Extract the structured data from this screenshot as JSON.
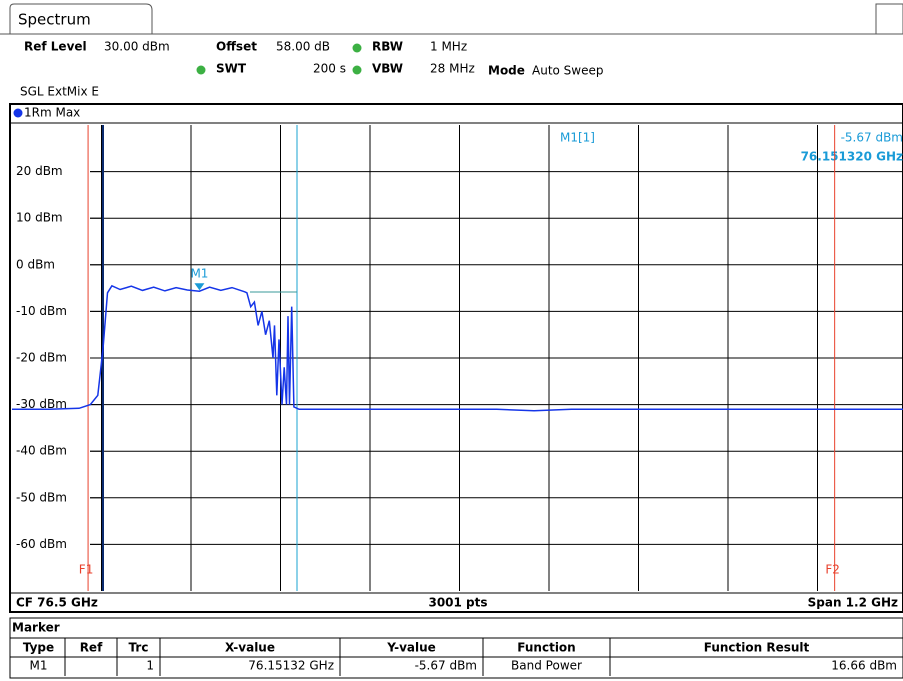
{
  "tab": "Spectrum",
  "header": {
    "ref_level_label": "Ref Level",
    "ref_level": "30.00 dBm",
    "offset_label": "Offset",
    "offset": "58.00 dB",
    "rbw_label": "RBW",
    "rbw": "1 MHz",
    "swt_label": "SWT",
    "swt": "200 s",
    "vbw_label": "VBW",
    "vbw": "28 MHz",
    "mode_label": "Mode",
    "mode": "Auto Sweep",
    "sweep_info": "SGL ExtMix E"
  },
  "trace_label": "1Rm Max",
  "readout": {
    "name": "M1[1]",
    "level": "-5.67 dBm",
    "freq": "76.151320 GHz"
  },
  "chart_data": {
    "type": "line",
    "x": [
      75.9,
      75.95,
      75.99,
      76.005,
      76.015,
      76.022,
      76.028,
      76.034,
      76.045,
      76.06,
      76.075,
      76.09,
      76.105,
      76.12,
      76.135,
      76.15132,
      76.165,
      76.18,
      76.195,
      76.212,
      76.215,
      76.22,
      76.225,
      76.23,
      76.235,
      76.24,
      76.245,
      76.25,
      76.252,
      76.255,
      76.258,
      76.262,
      76.265,
      76.268,
      76.27,
      76.272,
      76.275,
      76.278,
      76.285,
      76.4,
      76.55,
      76.6,
      76.65,
      77.1
    ],
    "series": [
      {
        "name": "1Rm Max",
        "color": "#1535e8",
        "values": [
          -31,
          -31,
          -30.8,
          -30,
          -28,
          -18,
          -6,
          -4.5,
          -5.3,
          -4.6,
          -5.5,
          -4.8,
          -5.6,
          -4.9,
          -5.4,
          -5.67,
          -4.8,
          -5.5,
          -4.9,
          -5.8,
          -6,
          -9,
          -8,
          -13,
          -10,
          -15,
          -12,
          -20,
          -13,
          -28,
          -16,
          -30,
          -22,
          -30,
          -11,
          -30,
          -9,
          -30.5,
          -31,
          -31,
          -31,
          -31.3,
          -31,
          -31
        ]
      }
    ],
    "xlim": [
      75.9,
      77.1
    ],
    "ylim": [
      -70,
      30
    ],
    "yticks": [
      {
        "value": 20,
        "label": "20 dBm"
      },
      {
        "value": 10,
        "label": "10 dBm"
      },
      {
        "value": 0,
        "label": "0 dBm"
      },
      {
        "value": -10,
        "label": "-10 dBm"
      },
      {
        "value": -20,
        "label": "-20 dBm"
      },
      {
        "value": -30,
        "label": "-30 dBm"
      },
      {
        "value": -40,
        "label": "-40 dBm"
      },
      {
        "value": -50,
        "label": "-50 dBm"
      },
      {
        "value": -60,
        "label": "-60 dBm"
      }
    ],
    "grid": true,
    "markers": [
      {
        "name": "M1",
        "x": 76.15132,
        "value": -5.67
      }
    ],
    "limit_lines": [
      {
        "name": "F1",
        "x": 76.002
      },
      {
        "name": "F2",
        "x": 77.003
      }
    ]
  },
  "footer": {
    "cf": "CF 76.5 GHz",
    "points": "3001 pts",
    "span": "Span 1.2 GHz"
  },
  "table": {
    "title": "Marker",
    "header": [
      "Type",
      "Ref",
      "Trc",
      "X-value",
      "Y-value",
      "Function",
      "Function Result"
    ],
    "rows": [
      {
        "type": "M1",
        "trc": "1",
        "x": "76.15132 GHz",
        "y": "-5.67 dBm",
        "function": "Band Power",
        "result": "16.66 dBm"
      }
    ]
  }
}
